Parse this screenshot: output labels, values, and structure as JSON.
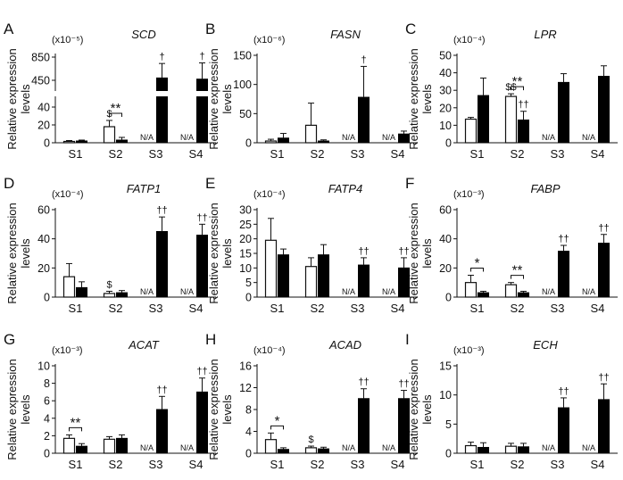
{
  "figure": {
    "categories": [
      "S1",
      "S2",
      "S3",
      "S4"
    ],
    "ylabel_line1": "Relative expression",
    "ylabel_line2": "levels"
  },
  "colors": {
    "open_bar": "#ffffff",
    "filled_bar": "#000000",
    "stroke": "#111111"
  },
  "chart_data": [
    {
      "type": "bar",
      "letter": "A",
      "title": "SCD",
      "scale_label": "(x10⁻⁵)",
      "categories": [
        "S1",
        "S2",
        "S3",
        "S4"
      ],
      "ylim": [
        0,
        850
      ],
      "axis_break": true,
      "yticks": [
        "0",
        "20",
        "40",
        "450",
        "850"
      ],
      "series": [
        {
          "name": "open",
          "values": [
            1.5,
            18,
            null,
            null
          ],
          "errors": [
            1,
            7,
            null,
            null
          ]
        },
        {
          "name": "filled",
          "values": [
            2,
            3,
            490,
            470
          ],
          "errors": [
            1,
            3,
            250,
            280
          ]
        }
      ],
      "na_labels": [
        "N/A",
        "N/A"
      ],
      "annotations": [
        {
          "text": "**",
          "kind": "bracket",
          "category": "S2"
        },
        {
          "text": "$",
          "over": "S2-open"
        },
        {
          "text": "†",
          "over": "S3-filled"
        },
        {
          "text": "†",
          "over": "S4-filled"
        }
      ]
    },
    {
      "type": "bar",
      "letter": "B",
      "title": "FASN",
      "scale_label": "(x10⁻⁶)",
      "categories": [
        "S1",
        "S2",
        "S3",
        "S4"
      ],
      "ylim": [
        0,
        150
      ],
      "yticks": [
        "0",
        "50",
        "100",
        "150"
      ],
      "series": [
        {
          "name": "open",
          "values": [
            3,
            30,
            null,
            null
          ],
          "errors": [
            3,
            38,
            null,
            null
          ]
        },
        {
          "name": "filled",
          "values": [
            8,
            3,
            78,
            15
          ],
          "errors": [
            8,
            2,
            53,
            5
          ]
        }
      ],
      "na_labels": [
        "N/A",
        "N/A"
      ],
      "annotations": [
        {
          "text": "†",
          "over": "S3-filled"
        }
      ]
    },
    {
      "type": "bar",
      "letter": "C",
      "title": "LPR",
      "scale_label": "(x10⁻⁴)",
      "categories": [
        "S1",
        "S2",
        "S3",
        "S4"
      ],
      "ylim": [
        0,
        50
      ],
      "yticks": [
        "0",
        "10",
        "20",
        "30",
        "40",
        "50"
      ],
      "series": [
        {
          "name": "open",
          "values": [
            13.5,
            26.5,
            null,
            null
          ],
          "errors": [
            1,
            1.5,
            null,
            null
          ]
        },
        {
          "name": "filled",
          "values": [
            27,
            13,
            34.5,
            38
          ],
          "errors": [
            10,
            5,
            5,
            6
          ]
        }
      ],
      "na_labels": [
        "N/A",
        "N/A"
      ],
      "annotations": [
        {
          "text": "**",
          "kind": "bracket",
          "category": "S2"
        },
        {
          "text": "$$",
          "over": "S2-open"
        },
        {
          "text": "††",
          "over": "S2-filled"
        }
      ]
    },
    {
      "type": "bar",
      "letter": "D",
      "title": "FATP1",
      "scale_label": "(x10⁻⁴)",
      "categories": [
        "S1",
        "S2",
        "S3",
        "S4"
      ],
      "ylim": [
        0,
        60
      ],
      "yticks": [
        "0",
        "20",
        "40",
        "60"
      ],
      "series": [
        {
          "name": "open",
          "values": [
            14,
            2.5,
            null,
            null
          ],
          "errors": [
            9,
            1.5,
            null,
            null
          ]
        },
        {
          "name": "filled",
          "values": [
            6.5,
            3,
            45,
            42.5
          ],
          "errors": [
            4,
            1.5,
            10,
            7.5
          ]
        }
      ],
      "na_labels": [
        "N/A",
        "N/A"
      ],
      "annotations": [
        {
          "text": "$",
          "over": "S2-open"
        },
        {
          "text": "††",
          "over": "S3-filled"
        },
        {
          "text": "††",
          "over": "S4-filled"
        }
      ]
    },
    {
      "type": "bar",
      "letter": "E",
      "title": "FATP4",
      "scale_label": "(x10⁻⁴)",
      "categories": [
        "S1",
        "S2",
        "S3",
        "S4"
      ],
      "ylim": [
        0,
        30
      ],
      "yticks": [
        "0",
        "5",
        "10",
        "15",
        "20",
        "25",
        "30"
      ],
      "series": [
        {
          "name": "open",
          "values": [
            19.5,
            10.5,
            null,
            null
          ],
          "errors": [
            7.5,
            3,
            null,
            null
          ]
        },
        {
          "name": "filled",
          "values": [
            14.5,
            14.5,
            11,
            10
          ],
          "errors": [
            2,
            3.5,
            2.5,
            3.5
          ]
        }
      ],
      "na_labels": [
        "N/A",
        "N/A"
      ],
      "annotations": [
        {
          "text": "††",
          "over": "S3-filled"
        },
        {
          "text": "††",
          "over": "S4-filled"
        }
      ]
    },
    {
      "type": "bar",
      "letter": "F",
      "title": "FABP",
      "scale_label": "(x10⁻³)",
      "categories": [
        "S1",
        "S2",
        "S3",
        "S4"
      ],
      "ylim": [
        0,
        60
      ],
      "yticks": [
        "0",
        "20",
        "40",
        "60"
      ],
      "series": [
        {
          "name": "open",
          "values": [
            10,
            8.5,
            null,
            null
          ],
          "errors": [
            5,
            1.5,
            null,
            null
          ]
        },
        {
          "name": "filled",
          "values": [
            3,
            3,
            31.5,
            37
          ],
          "errors": [
            1,
            1,
            4,
            6
          ]
        }
      ],
      "na_labels": [
        "N/A",
        "N/A"
      ],
      "annotations": [
        {
          "text": "*",
          "kind": "bracket",
          "category": "S1"
        },
        {
          "text": "**",
          "kind": "bracket",
          "category": "S2"
        },
        {
          "text": "††",
          "over": "S3-filled"
        },
        {
          "text": "††",
          "over": "S4-filled"
        }
      ]
    },
    {
      "type": "bar",
      "letter": "G",
      "title": "ACAT",
      "scale_label": "(x10⁻³)",
      "categories": [
        "S1",
        "S2",
        "S3",
        "S4"
      ],
      "ylim": [
        0,
        10
      ],
      "yticks": [
        "0",
        "2",
        "4",
        "6",
        "8",
        "10"
      ],
      "series": [
        {
          "name": "open",
          "values": [
            1.7,
            1.6,
            null,
            null
          ],
          "errors": [
            0.4,
            0.3,
            null,
            null
          ]
        },
        {
          "name": "filled",
          "values": [
            0.8,
            1.7,
            5,
            7
          ],
          "errors": [
            0.3,
            0.4,
            1.5,
            1.6
          ]
        }
      ],
      "na_labels": [
        "N/A",
        "N/A"
      ],
      "annotations": [
        {
          "text": "**",
          "kind": "bracket",
          "category": "S1"
        },
        {
          "text": "††",
          "over": "S3-filled"
        },
        {
          "text": "††",
          "over": "S4-filled"
        }
      ]
    },
    {
      "type": "bar",
      "letter": "H",
      "title": "ACAD",
      "scale_label": "(x10⁻⁴)",
      "categories": [
        "S1",
        "S2",
        "S3",
        "S4"
      ],
      "ylim": [
        0,
        16
      ],
      "yticks": [
        "0",
        "4",
        "8",
        "12",
        "16"
      ],
      "series": [
        {
          "name": "open",
          "values": [
            2.5,
            1,
            null,
            null
          ],
          "errors": [
            1.2,
            0.3,
            null,
            null
          ]
        },
        {
          "name": "filled",
          "values": [
            0.7,
            0.8,
            10,
            10
          ],
          "errors": [
            0.3,
            0.3,
            1.8,
            1.5
          ]
        }
      ],
      "na_labels": [
        "N/A",
        "N/A"
      ],
      "annotations": [
        {
          "text": "*",
          "kind": "bracket",
          "category": "S1"
        },
        {
          "text": "$",
          "over": "S2-open"
        },
        {
          "text": "††",
          "over": "S3-filled"
        },
        {
          "text": "††",
          "over": "S4-filled"
        }
      ]
    },
    {
      "type": "bar",
      "letter": "I",
      "title": "ECH",
      "scale_label": "(x10⁻³)",
      "categories": [
        "S1",
        "S2",
        "S3",
        "S4"
      ],
      "ylim": [
        0,
        15
      ],
      "yticks": [
        "0",
        "5",
        "10",
        "15"
      ],
      "series": [
        {
          "name": "open",
          "values": [
            1.3,
            1.2,
            null,
            null
          ],
          "errors": [
            0.6,
            0.5,
            null,
            null
          ]
        },
        {
          "name": "filled",
          "values": [
            1,
            1.1,
            7.8,
            9.2
          ],
          "errors": [
            0.8,
            0.6,
            1.7,
            2.7
          ]
        }
      ],
      "na_labels": [
        "N/A",
        "N/A"
      ],
      "annotations": [
        {
          "text": "††",
          "over": "S3-filled"
        },
        {
          "text": "††",
          "over": "S4-filled"
        }
      ]
    }
  ]
}
